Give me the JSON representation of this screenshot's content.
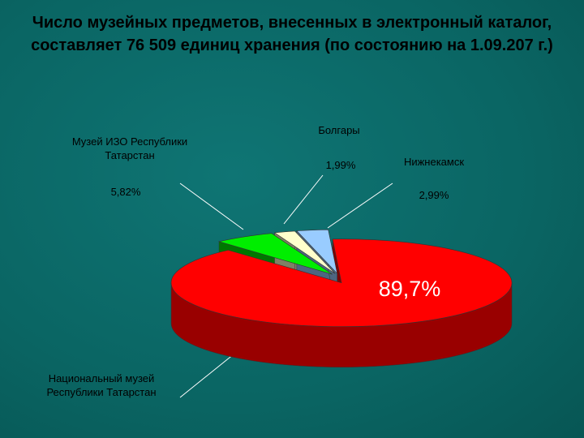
{
  "chart_data": {
    "type": "pie3d",
    "title": "Число музейных предметов, внесенных в электронный каталог, составляет 76 509 единиц хранения (по состоянию на 1.09.207 г.)",
    "categories": [
      "Национальный музей Республики Татарстан",
      "Музей ИЗО Республики Татарстан",
      "Болгары",
      "Нижнекамск"
    ],
    "values": [
      89.7,
      5.82,
      1.99,
      2.99
    ],
    "value_labels": [
      "89,7%",
      "5,82%",
      "1,99%",
      "2,99%"
    ],
    "colors": [
      "#ff0000",
      "#00ee00",
      "#ffffcc",
      "#99ccff"
    ]
  }
}
